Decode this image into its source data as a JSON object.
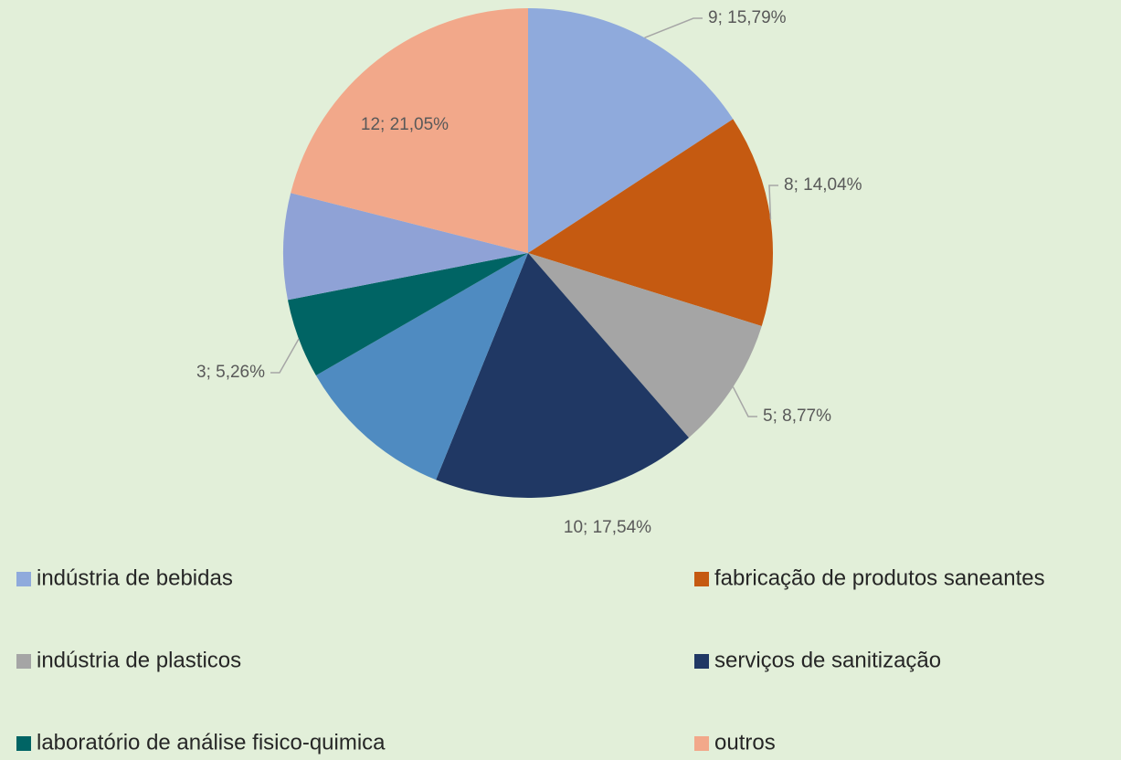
{
  "chart_data": {
    "type": "pie",
    "categories": [
      "indústria de bebidas",
      "fabricação de produtos saneantes",
      "indústria de plasticos",
      "serviços de sanitização",
      null,
      "laboratório de análise fisico-quimica",
      null,
      "outros"
    ],
    "values": [
      9,
      8,
      5,
      10,
      6,
      3,
      4,
      12
    ],
    "value_labels": [
      "9; 15,79%",
      "8; 14,04%",
      "5; 8,77%",
      "10; 17,54%",
      null,
      "3; 5,26%",
      null,
      "12; 21,05%"
    ],
    "colors": [
      "#8faadc",
      "#c55a11",
      "#a5a5a5",
      "#203864",
      "#4f8bc1",
      "#006464",
      "#8fa2d6",
      "#f2a88a"
    ],
    "legend": "bottom"
  }
}
